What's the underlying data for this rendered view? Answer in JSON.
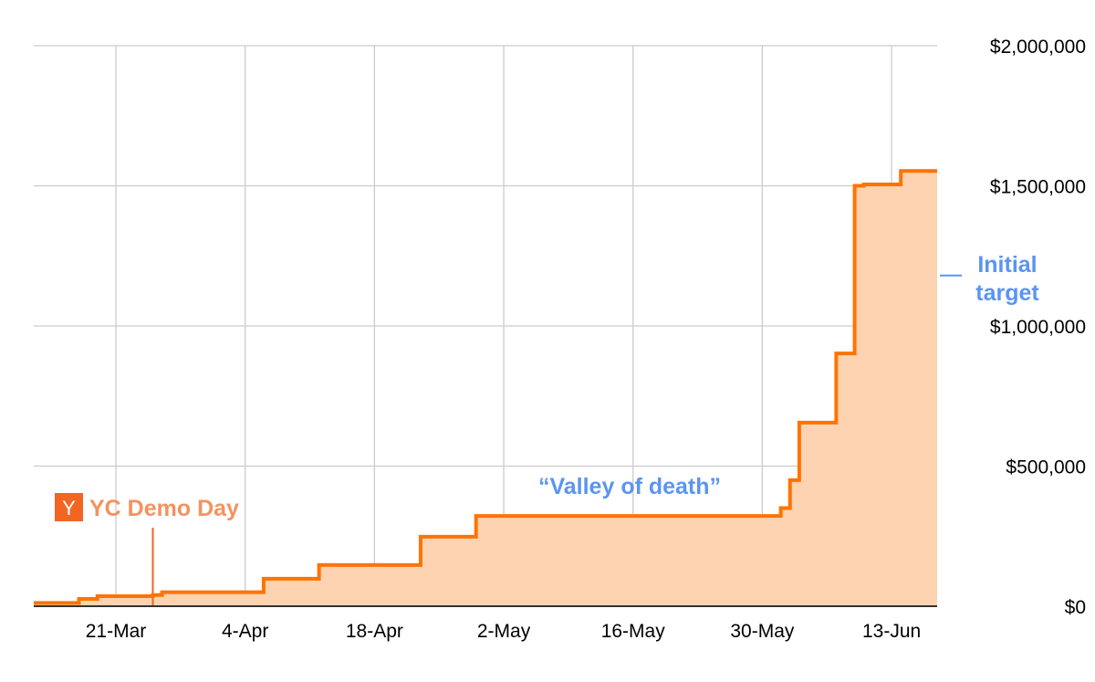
{
  "chart_data": {
    "type": "area",
    "subtype": "step",
    "title": "",
    "xlabel": "",
    "ylabel": "",
    "x_ticks": [
      "21-Mar",
      "4-Apr",
      "18-Apr",
      "2-May",
      "16-May",
      "30-May",
      "13-Jun"
    ],
    "y_ticks": [
      "$0",
      "$500,000",
      "$1,000,000",
      "$1,500,000",
      "$2,000,000"
    ],
    "y_tick_values": [
      0,
      500000,
      1000000,
      1500000,
      2000000
    ],
    "xlim": [
      "12-Mar",
      "18-Jun"
    ],
    "ylim": [
      0,
      2000000
    ],
    "y_axis_position": "right",
    "grid": true,
    "series": [
      {
        "x": [
          "12-Mar",
          "17-Mar",
          "19-Mar",
          "25-Mar",
          "26-Mar",
          "6-Apr",
          "12-Apr",
          "23-Apr",
          "29-Apr",
          "1-Jun",
          "2-Jun",
          "3-Jun",
          "7-Jun",
          "9-Jun",
          "10-Jun",
          "14-Jun",
          "18-Jun"
        ],
        "values": [
          12000,
          26000,
          36000,
          40000,
          50000,
          98000,
          147000,
          248000,
          322000,
          350000,
          450000,
          655000,
          902000,
          1500000,
          1505000,
          1553000,
          1553000
        ]
      }
    ],
    "annotations": [
      {
        "id": "demo_day",
        "text": "YC Demo Day",
        "logo": "Y",
        "x": "25-Mar"
      },
      {
        "id": "valley",
        "text": "“Valley of death”"
      },
      {
        "id": "target",
        "text_line1": "Initial",
        "text_line2": "target",
        "y": 1180000
      }
    ],
    "colors": {
      "line": "#ff7300",
      "fill": "#fdd3b1",
      "grid": "#cccccc",
      "axis": "#333333",
      "demo_day": "#f4925f",
      "demo_logo": "#f26522",
      "annotation_blue": "#5b95f0"
    }
  }
}
